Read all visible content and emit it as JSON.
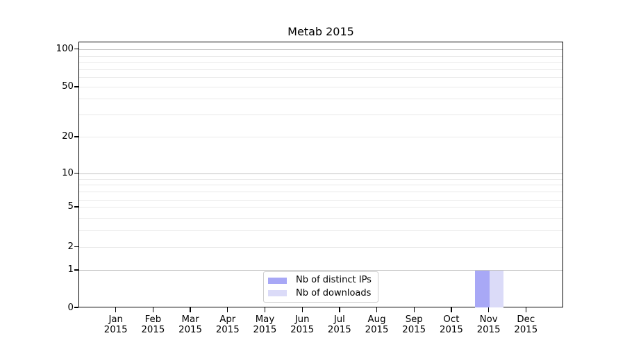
{
  "title": "Metab 2015",
  "chart_data": {
    "type": "bar",
    "title": "Metab 2015",
    "categories": [
      "Jan",
      "Feb",
      "Mar",
      "Apr",
      "May",
      "Jun",
      "Jul",
      "Aug",
      "Sep",
      "Oct",
      "Nov",
      "Dec"
    ],
    "x_sublabel_year": "2015",
    "series": [
      {
        "name": "Nb of distinct IPs",
        "color": "#a8a8f6",
        "values": [
          0,
          0,
          0,
          0,
          0,
          0,
          0,
          0,
          0,
          0,
          1,
          0
        ]
      },
      {
        "name": "Nb of downloads",
        "color": "#dbdbf8",
        "values": [
          0,
          0,
          0,
          0,
          0,
          0,
          0,
          0,
          0,
          0,
          1,
          0
        ]
      }
    ],
    "xlabel": "",
    "ylabel": "",
    "yscale": "symlog",
    "ylim": [
      0,
      130
    ],
    "y_major_tick_labels": [
      100,
      50,
      20,
      10,
      5,
      2,
      1,
      0
    ],
    "y_decade_gridlines": [
      1,
      10,
      100
    ],
    "y_minor_gridlines": [
      2,
      3,
      4,
      5,
      6,
      7,
      8,
      9,
      20,
      30,
      40,
      50,
      60,
      70,
      80,
      90
    ],
    "grid": "horizontal major + minor, on",
    "legend_position": "lower center",
    "y_anchor_fractions": {
      "0": 0,
      "1": 0.141,
      "2": 0.2293,
      "3": 0.2899,
      "4": 0.3377,
      "5": 0.3787,
      "6": 0.4048,
      "7": 0.4369,
      "8": 0.4638,
      "9": 0.4847,
      "10": 0.5056,
      "20": 0.6424,
      "30": 0.7273,
      "40": 0.7861,
      "50": 0.8305,
      "60": 0.8686,
      "70": 0.8966,
      "80": 0.9227,
      "90": 0.947,
      "100": 0.9731
    }
  },
  "colors": {
    "axis": "#000000",
    "grid_major": "#c3c3c3",
    "grid_minor": "#e9e9e9",
    "text": "#000000",
    "legend_border": "#cccccc",
    "legend_bg": "#ffffff"
  }
}
